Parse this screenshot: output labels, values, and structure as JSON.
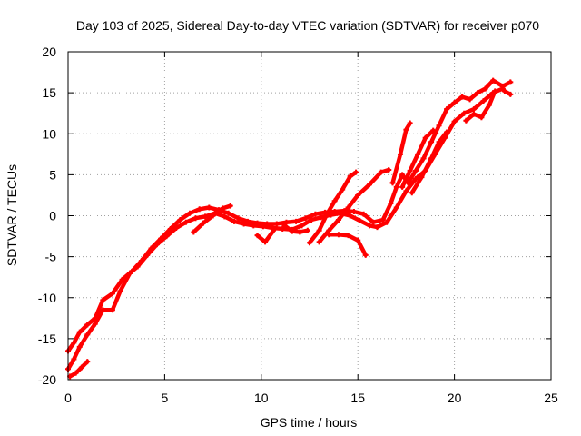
{
  "chart_data": {
    "type": "scatter",
    "title": "Day 103 of 2025, Sidereal Day-to-day VTEC variation (SDTVAR) for receiver p070",
    "xlabel": "GPS time / hours",
    "ylabel": "SDTVAR / TECUs",
    "xlim": [
      0,
      25
    ],
    "ylim": [
      -20,
      20
    ],
    "xticks": [
      0,
      5,
      10,
      15,
      20,
      25
    ],
    "yticks": [
      -20,
      -15,
      -10,
      -5,
      0,
      5,
      10,
      15,
      20
    ],
    "xtick_labels": [
      "0",
      "5",
      "10",
      "15",
      "20",
      "25"
    ],
    "ytick_labels": [
      "-20",
      "-15",
      "-10",
      "-5",
      "0",
      "5",
      "10",
      "15",
      "20"
    ],
    "grid": true,
    "marker_color": "#ff0000",
    "series": [
      {
        "points": [
          [
            0.0,
            -16.5
          ],
          [
            0.3,
            -15.5
          ],
          [
            0.6,
            -14.2
          ],
          [
            1.0,
            -13.3
          ],
          [
            1.4,
            -12.5
          ],
          [
            1.8,
            -10.3
          ],
          [
            2.3,
            -9.5
          ],
          [
            2.8,
            -7.8
          ],
          [
            3.3,
            -6.8
          ],
          [
            3.8,
            -5.5
          ],
          [
            4.3,
            -4.0
          ],
          [
            4.8,
            -2.8
          ],
          [
            5.3,
            -1.6
          ],
          [
            5.8,
            -0.5
          ],
          [
            6.3,
            0.3
          ],
          [
            6.8,
            0.8
          ],
          [
            7.3,
            1.0
          ],
          [
            7.8,
            0.7
          ],
          [
            8.3,
            0.3
          ],
          [
            8.8,
            -0.3
          ],
          [
            9.3,
            -0.7
          ],
          [
            9.8,
            -0.9
          ],
          [
            10.3,
            -1.0
          ],
          [
            10.8,
            -1.0
          ],
          [
            11.3,
            -0.8
          ],
          [
            11.8,
            -0.7
          ],
          [
            12.3,
            -0.3
          ],
          [
            12.8,
            0.2
          ],
          [
            13.3,
            0.4
          ],
          [
            13.8,
            0.5
          ],
          [
            14.3,
            0.6
          ],
          [
            14.8,
            0.5
          ],
          [
            15.3,
            0.2
          ],
          [
            15.8,
            -0.8
          ],
          [
            16.3,
            -0.5
          ],
          [
            16.7,
            1.5
          ],
          [
            17.0,
            3.5
          ],
          [
            17.3,
            5.0
          ],
          [
            17.6,
            4.0
          ],
          [
            18.0,
            5.5
          ],
          [
            18.4,
            7.0
          ],
          [
            18.8,
            9.0
          ],
          [
            19.2,
            11.0
          ],
          [
            19.6,
            13.0
          ],
          [
            20.0,
            13.8
          ],
          [
            20.4,
            14.5
          ],
          [
            20.8,
            14.2
          ],
          [
            21.2,
            15.0
          ],
          [
            21.6,
            15.5
          ],
          [
            22.0,
            16.5
          ],
          [
            22.5,
            15.8
          ],
          [
            22.9,
            16.3
          ]
        ]
      },
      {
        "points": [
          [
            0.0,
            -18.7
          ],
          [
            0.3,
            -17.5
          ],
          [
            0.6,
            -16.0
          ],
          [
            1.0,
            -14.5
          ],
          [
            1.4,
            -13.2
          ],
          [
            1.8,
            -11.5
          ],
          [
            2.3,
            -11.5
          ],
          [
            2.7,
            -9.2
          ],
          [
            3.2,
            -7.0
          ],
          [
            3.6,
            -6.2
          ],
          [
            4.1,
            -4.8
          ],
          [
            4.6,
            -3.5
          ],
          [
            5.1,
            -2.5
          ],
          [
            5.6,
            -1.5
          ],
          [
            6.1,
            -0.8
          ],
          [
            6.6,
            -0.3
          ],
          [
            7.1,
            -0.1
          ],
          [
            7.6,
            0.3
          ],
          [
            8.1,
            -0.1
          ],
          [
            8.6,
            -0.7
          ],
          [
            9.1,
            -1.0
          ],
          [
            9.6,
            -1.2
          ],
          [
            10.1,
            -1.3
          ],
          [
            10.6,
            -1.5
          ],
          [
            11.1,
            -1.6
          ],
          [
            11.6,
            -1.7
          ],
          [
            12.1,
            -1.2
          ],
          [
            12.6,
            -0.5
          ],
          [
            13.1,
            -0.2
          ],
          [
            13.6,
            0.1
          ],
          [
            14.1,
            0.3
          ],
          [
            14.6,
            0.0
          ],
          [
            15.1,
            -0.6
          ],
          [
            15.6,
            -1.2
          ],
          [
            16.0,
            -1.4
          ],
          [
            16.5,
            -0.8
          ],
          [
            17.0,
            1.0
          ],
          [
            17.5,
            3.0
          ],
          [
            18.0,
            4.5
          ],
          [
            18.5,
            5.5
          ],
          [
            19.0,
            7.5
          ],
          [
            19.5,
            9.5
          ],
          [
            20.0,
            11.5
          ],
          [
            20.5,
            12.5
          ],
          [
            21.0,
            13.0
          ],
          [
            21.5,
            14.0
          ],
          [
            22.0,
            15.0
          ],
          [
            22.5,
            15.5
          ]
        ]
      },
      {
        "points": [
          [
            0.1,
            -19.6
          ],
          [
            0.4,
            -19.2
          ],
          [
            0.7,
            -18.5
          ],
          [
            1.0,
            -17.8
          ]
        ]
      },
      {
        "points": [
          [
            6.5,
            -2.0
          ],
          [
            7.0,
            -0.9
          ],
          [
            7.5,
            0.0
          ],
          [
            8.0,
            0.9
          ],
          [
            8.4,
            1.2
          ]
        ]
      },
      {
        "points": [
          [
            9.8,
            -2.4
          ],
          [
            10.2,
            -3.2
          ],
          [
            10.7,
            -1.6
          ]
        ]
      },
      {
        "points": [
          [
            11.2,
            -1.2
          ],
          [
            11.6,
            -1.9
          ],
          [
            12.0,
            -2.0
          ],
          [
            12.4,
            -1.8
          ]
        ]
      },
      {
        "points": [
          [
            12.5,
            -3.3
          ],
          [
            13.0,
            -1.8
          ],
          [
            13.4,
            0.2
          ],
          [
            13.8,
            1.8
          ],
          [
            14.2,
            3.2
          ],
          [
            14.6,
            4.8
          ],
          [
            14.9,
            5.3
          ]
        ]
      },
      {
        "points": [
          [
            13.0,
            -3.2
          ],
          [
            13.5,
            -1.8
          ],
          [
            14.0,
            -0.5
          ],
          [
            14.5,
            1.0
          ],
          [
            15.0,
            2.5
          ],
          [
            15.6,
            3.8
          ],
          [
            16.2,
            5.3
          ],
          [
            16.6,
            5.6
          ]
        ]
      },
      {
        "points": [
          [
            13.5,
            -2.3
          ],
          [
            14.0,
            -2.3
          ],
          [
            14.5,
            -2.4
          ],
          [
            15.0,
            -3.0
          ],
          [
            15.4,
            -4.8
          ]
        ]
      },
      {
        "points": [
          [
            16.8,
            4.0
          ],
          [
            17.2,
            7.5
          ],
          [
            17.5,
            10.5
          ],
          [
            17.7,
            11.3
          ]
        ]
      },
      {
        "points": [
          [
            17.3,
            3.5
          ],
          [
            17.7,
            5.5
          ],
          [
            18.1,
            7.5
          ],
          [
            18.5,
            9.5
          ],
          [
            18.9,
            10.4
          ]
        ]
      },
      {
        "points": [
          [
            17.8,
            2.8
          ],
          [
            18.3,
            4.7
          ],
          [
            18.8,
            7.0
          ],
          [
            19.2,
            9.0
          ],
          [
            19.6,
            10.2
          ]
        ]
      },
      {
        "points": [
          [
            20.6,
            11.6
          ],
          [
            21.0,
            12.4
          ],
          [
            21.4,
            12.0
          ],
          [
            21.8,
            13.5
          ],
          [
            22.1,
            15.2
          ]
        ]
      },
      {
        "points": [
          [
            22.6,
            15.2
          ],
          [
            22.9,
            14.8
          ]
        ]
      }
    ]
  }
}
